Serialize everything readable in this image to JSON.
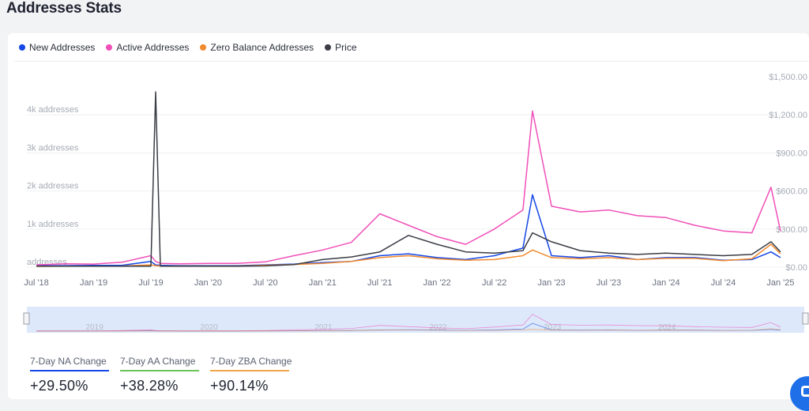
{
  "page": {
    "title": "Addresses Stats"
  },
  "colors": {
    "new_addresses": "#1447e6",
    "active_addresses": "#f04fb8",
    "zero_balance": "#f28a2e",
    "price": "#3a3d45",
    "navigator_fill": "#dde8fb"
  },
  "legend": [
    {
      "label": "New Addresses",
      "color": "#1447e6"
    },
    {
      "label": "Active Addresses",
      "color": "#f04fb8"
    },
    {
      "label": "Zero Balance Addresses",
      "color": "#f28a2e"
    },
    {
      "label": "Price",
      "color": "#3a3d45"
    }
  ],
  "stats": [
    {
      "label": "7-Day NA Change",
      "value": "+29.50%",
      "color": "#1447e6"
    },
    {
      "label": "7-Day AA Change",
      "value": "+38.28%",
      "color": "#6cc35a"
    },
    {
      "label": "7-Day ZBA Change",
      "value": "+90.14%",
      "color": "#f2a64a"
    }
  ],
  "chart_data": {
    "type": "line",
    "title": "Addresses Stats",
    "x_tick_labels": [
      "Jul '18",
      "Jan '19",
      "Jul '19",
      "Jan '20",
      "Jul '20",
      "Jan '21",
      "Jul '21",
      "Jan '22",
      "Jul '22",
      "Jan '23",
      "Jul '23",
      "Jan '24",
      "Jul '24",
      "Jan '25"
    ],
    "y_left_ticks": [
      "addresses",
      "1k addresses",
      "2k addresses",
      "3k addresses",
      "4k addresses"
    ],
    "y_left_ylim": [
      0,
      5000
    ],
    "y_right_ticks": [
      "$0.00",
      "$300.00",
      "$600.00",
      "$900.00",
      "$1,200.00",
      "$1,500.00"
    ],
    "y_right_ylim": [
      0,
      1500
    ],
    "navigator_labels": [
      "2019",
      "2020",
      "2021",
      "2022",
      "2023",
      "2024"
    ],
    "x": [
      "2018-07",
      "2018-10",
      "2019-01",
      "2019-04",
      "2019-07",
      "2019-07-15",
      "2019-08",
      "2019-10",
      "2020-01",
      "2020-04",
      "2020-07",
      "2020-10",
      "2021-01",
      "2021-04",
      "2021-07",
      "2021-10",
      "2022-01",
      "2022-04",
      "2022-07",
      "2022-10",
      "2022-11",
      "2023-01",
      "2023-04",
      "2023-07",
      "2023-10",
      "2024-01",
      "2024-04",
      "2024-07",
      "2024-10",
      "2024-12",
      "2025-01"
    ],
    "series": [
      {
        "name": "New Addresses",
        "color": "#1447e6",
        "axis": "left",
        "values": [
          40,
          40,
          45,
          50,
          150,
          60,
          50,
          40,
          40,
          40,
          60,
          80,
          120,
          150,
          300,
          350,
          250,
          200,
          300,
          500,
          1900,
          300,
          250,
          300,
          200,
          250,
          250,
          180,
          200,
          400,
          250
        ]
      },
      {
        "name": "Active Addresses",
        "color": "#f04fb8",
        "axis": "left",
        "values": [
          60,
          90,
          80,
          130,
          300,
          150,
          100,
          90,
          100,
          100,
          140,
          300,
          450,
          650,
          1400,
          1100,
          800,
          600,
          1000,
          1500,
          4100,
          1600,
          1450,
          1500,
          1350,
          1300,
          1100,
          950,
          900,
          2100,
          950
        ]
      },
      {
        "name": "Zero Balance Addresses",
        "color": "#f28a2e",
        "axis": "left",
        "values": [
          20,
          25,
          25,
          30,
          60,
          40,
          30,
          30,
          30,
          30,
          50,
          70,
          100,
          150,
          250,
          300,
          220,
          180,
          200,
          300,
          450,
          250,
          220,
          250,
          200,
          230,
          230,
          170,
          220,
          600,
          350
        ]
      },
      {
        "name": "Price",
        "color": "#3a3d45",
        "axis": "right",
        "values": [
          8,
          8,
          8,
          8,
          8,
          1380,
          8,
          8,
          8,
          8,
          10,
          20,
          60,
          80,
          120,
          250,
          180,
          120,
          110,
          130,
          270,
          200,
          130,
          110,
          100,
          110,
          100,
          90,
          100,
          200,
          120
        ]
      }
    ]
  }
}
